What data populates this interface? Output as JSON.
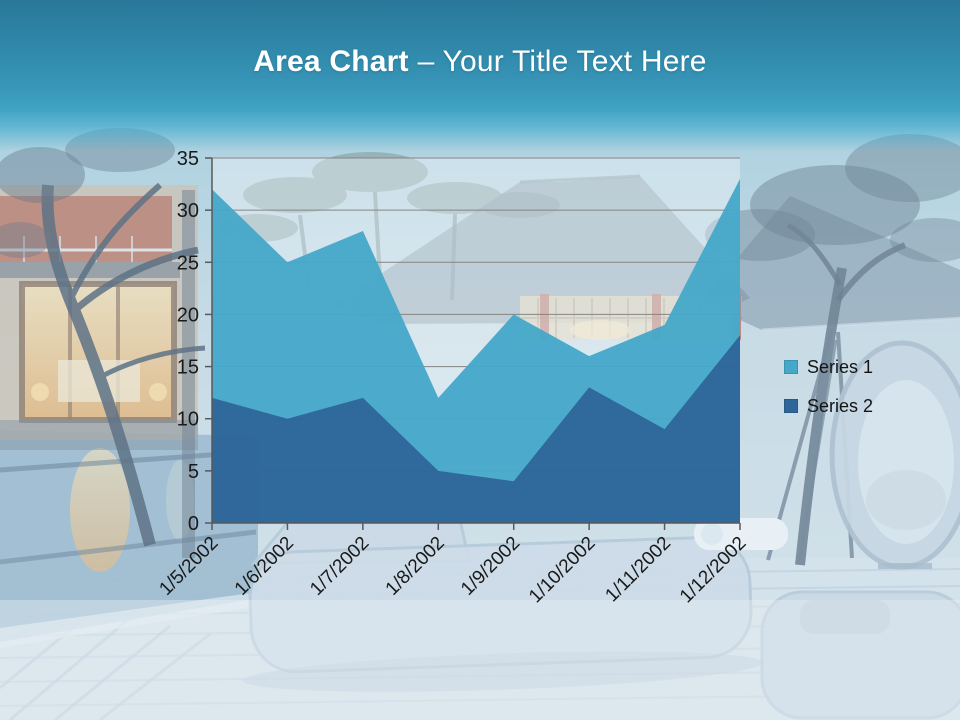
{
  "slide": {
    "title": {
      "bold": "Area Chart",
      "rest": "– Your Title Text Here"
    },
    "background_description": "villa-at-dusk-photo",
    "header_color_top": "#29789a",
    "header_color_bottom": "#45aacb"
  },
  "chart_data": {
    "type": "area",
    "mode": "overlapping",
    "title": "",
    "xlabel": "",
    "ylabel": "",
    "categories": [
      "1/5/2002",
      "1/6/2002",
      "1/7/2002",
      "1/8/2002",
      "1/9/2002",
      "1/10/2002",
      "1/11/2002",
      "1/12/2002"
    ],
    "series": [
      {
        "name": "Series 1",
        "color": "#45a8c9",
        "values": [
          32,
          25,
          28,
          12,
          20,
          16,
          19,
          33
        ]
      },
      {
        "name": "Series 2",
        "color": "#2f6699",
        "values": [
          12,
          10,
          12,
          5,
          4,
          13,
          9,
          18
        ]
      }
    ],
    "ylim": [
      0,
      35
    ],
    "yticks": [
      0,
      5,
      10,
      15,
      20,
      25,
      30,
      35
    ],
    "grid": true,
    "legend_position": "right",
    "axis_color": "#595959",
    "gridline_color": "#848484",
    "label_color": "#1a1a1a"
  }
}
